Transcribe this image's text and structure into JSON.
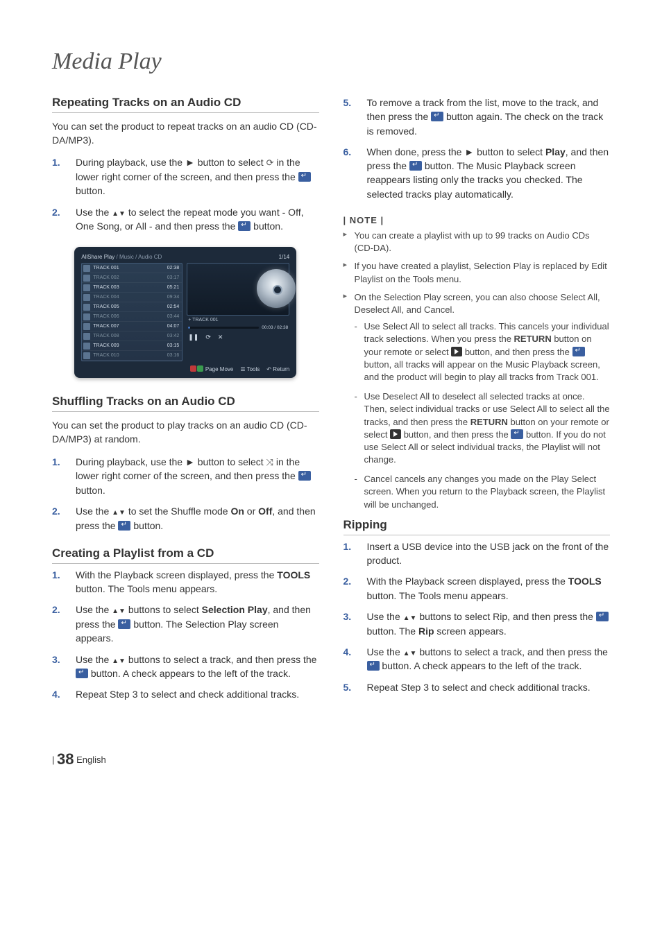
{
  "page_title": "Media Play",
  "left": {
    "section1": {
      "heading": "Repeating Tracks on an Audio CD",
      "intro": "You can set the product to repeat tracks on an audio CD (CD-DA/MP3).",
      "step1_a": "During playback, use the ",
      "step1_arrow": "►",
      "step1_b": " button to select ",
      "step1_c": " in the lower right corner of the screen, and then press the ",
      "step1_d": " button.",
      "step2_a": "Use the ",
      "step2_tri": "▲▼",
      "step2_b": " to select the repeat mode you want - Off, One Song, or All - and then press the ",
      "step2_c": " button."
    },
    "section2": {
      "heading": "Shuffling Tracks on an Audio CD",
      "intro": "You can set the product to play tracks on an audio CD (CD-DA/MP3) at random.",
      "step1_a": "During playback, use the ",
      "step1_arrow": "►",
      "step1_b": " button to select ",
      "step1_c": " in the lower right corner of the screen, and then press the ",
      "step1_d": " button.",
      "step2_a": "Use the ",
      "step2_tri": "▲▼",
      "step2_b": " to set the Shuffle mode ",
      "step2_on": "On",
      "step2_c": " or ",
      "step2_off": "Off",
      "step2_d": ", and then press the ",
      "step2_e": " button."
    },
    "section3": {
      "heading": "Creating a Playlist from a CD",
      "step1_a": "With the Playback screen displayed, press the ",
      "step1_tools": "TOOLS",
      "step1_b": " button. The Tools menu appears.",
      "step2_a": "Use the ",
      "step2_tri": "▲▼",
      "step2_b": " buttons to select ",
      "step2_sel": "Selection Play",
      "step2_c": ", and then press the ",
      "step2_d": " button. The Selection Play screen appears.",
      "step3_a": "Use the ",
      "step3_tri": "▲▼",
      "step3_b": " buttons to select a track, and then press the ",
      "step3_c": " button. A check appears to the left of the track.",
      "step4": "Repeat Step 3 to select and check additional tracks."
    }
  },
  "right": {
    "cont": {
      "step5_a": "To remove a track from the list, move to the track, and then press the ",
      "step5_b": " button again. The check on the track is removed.",
      "step6_a": "When done, press the ",
      "step6_arrow": "►",
      "step6_b": " button to select ",
      "step6_play": "Play",
      "step6_c": ", and then press the ",
      "step6_d": " button. The Music Playback screen reappears listing only the tracks you checked. The selected tracks play automatically."
    },
    "note_heading": "| NOTE |",
    "notes": {
      "n1": "You can create a playlist with up to 99 tracks on Audio CDs (CD-DA).",
      "n2": "If you have created a playlist, Selection Play is replaced by Edit Playlist on the Tools menu.",
      "n3": "On the Selection Play screen, you can also choose Select All, Deselect All, and Cancel.",
      "s1_a": "Use Select All to select all tracks. This cancels your individual track selections. When you press the ",
      "s1_ret": "RETURN",
      "s1_b": " button on your remote or select ",
      "s1_c": " button, and then press the ",
      "s1_d": " button, all tracks will appear on the Music Playback screen, and the product will begin to play all tracks from Track 001.",
      "s2_a": "Use Deselect All to deselect all selected tracks at once. Then, select individual tracks or use Select All to select all the tracks, and then press the ",
      "s2_ret": "RETURN",
      "s2_b": " button on your remote or select ",
      "s2_c": " button, and then press the ",
      "s2_d": " button. If you do not use Select All or select individual tracks, the Playlist will not change.",
      "s3": "Cancel cancels any changes you made on the Play Select screen. When you return to the Playback screen, the Playlist will be unchanged."
    },
    "ripping": {
      "heading": "Ripping",
      "step1": "Insert a USB device into the USB jack on the front of the product.",
      "step2_a": "With the Playback screen displayed, press the ",
      "step2_tools": "TOOLS",
      "step2_b": " button. The Tools menu appears.",
      "step3_a": "Use the ",
      "step3_tri": "▲▼",
      "step3_b": " buttons to select Rip, and then press the ",
      "step3_c": " button. The ",
      "step3_rip": "Rip",
      "step3_d": " screen appears.",
      "step4_a": "Use the ",
      "step4_tri": "▲▼",
      "step4_b": " buttons to select a track, and then press the ",
      "step4_c": " button. A check appears to the left of the track.",
      "step5": "Repeat Step 3 to select and check additional tracks."
    }
  },
  "player": {
    "crumb_app": "AllShare Play",
    "crumb_music": " / Music / ",
    "crumb_cd": "Audio CD",
    "count": "1/14",
    "tracks": [
      {
        "name": "TRACK 001",
        "time": "02:38",
        "alt": false
      },
      {
        "name": "TRACK 002",
        "time": "03:17",
        "alt": true
      },
      {
        "name": "TRACK 003",
        "time": "05:21",
        "alt": false
      },
      {
        "name": "TRACK 004",
        "time": "09:34",
        "alt": true
      },
      {
        "name": "TRACK 005",
        "time": "02:54",
        "alt": false
      },
      {
        "name": "TRACK 006",
        "time": "03:44",
        "alt": true
      },
      {
        "name": "TRACK 007",
        "time": "04:07",
        "alt": false
      },
      {
        "name": "TRACK 008",
        "time": "03:42",
        "alt": true
      },
      {
        "name": "TRACK 009",
        "time": "03:15",
        "alt": false
      },
      {
        "name": "TRACK 010",
        "time": "03:16",
        "alt": true
      }
    ],
    "now_playing": "+ TRACK 001",
    "elapsed": "00:03 / 02:38",
    "progress_pct": 3,
    "footer": {
      "pagemove": "Page Move",
      "tools": "Tools",
      "return": "Return"
    }
  },
  "footer": {
    "bar": "|",
    "num": "38",
    "lang": "English"
  }
}
